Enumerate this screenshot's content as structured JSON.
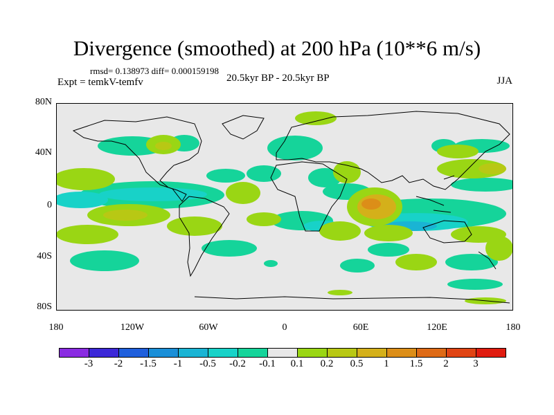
{
  "title": "Divergence (smoothed) at 200 hPa (10**6 m/s)",
  "stats": "rmsd= 0.138973 diff= 0.000159198",
  "expt": "Expt = temkV-temfv",
  "period": "20.5kyr BP - 20.5kyr BP",
  "season": "JJA",
  "y_ticks": [
    "80N",
    "40N",
    "0",
    "40S",
    "80S"
  ],
  "x_ticks": [
    "180",
    "120W",
    "60W",
    "0",
    "60E",
    "120E",
    "180"
  ],
  "colorbar": {
    "colors": [
      "#8a2be2",
      "#3c28d8",
      "#1f5fdc",
      "#1a8fd8",
      "#1ab4d4",
      "#18d2c8",
      "#15d49a",
      "#e8e8e8",
      "#9ad614",
      "#b8c814",
      "#d4b01a",
      "#dc8e18",
      "#de6a16",
      "#e04414",
      "#e01c10"
    ],
    "labels": [
      "-3",
      "-2",
      "-1.5",
      "-1",
      "-0.5",
      "-0.2",
      "-0.1",
      "0.1",
      "0.2",
      "0.5",
      "1",
      "1.5",
      "2",
      "3"
    ]
  }
}
